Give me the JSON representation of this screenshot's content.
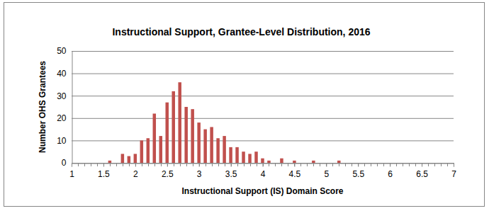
{
  "chart_data": {
    "type": "bar",
    "title": "Instructional Support, Grantee-Level Distribution, 2016",
    "x_label": "Instructional Support (IS) Domain Score",
    "y_label": "Number OHS Grantees",
    "x": [
      1,
      1.1,
      1.2,
      1.3,
      1.4,
      1.5,
      1.6,
      1.7,
      1.8,
      1.9,
      2,
      2.1,
      2.2,
      2.3,
      2.4,
      2.5,
      2.6,
      2.7,
      2.8,
      2.9,
      3,
      3.1,
      3.2,
      3.3,
      3.4,
      3.5,
      3.6,
      3.7,
      3.8,
      3.9,
      4,
      4.1,
      4.2,
      4.3,
      4.4,
      4.5,
      4.6,
      4.7,
      4.8,
      4.9,
      5,
      5.1,
      5.2,
      5.3,
      5.4,
      5.5,
      5.6,
      5.7,
      5.8,
      5.9,
      6,
      6.1,
      6.2,
      6.3,
      6.4,
      6.5,
      6.6,
      6.7,
      6.8,
      6.9,
      7
    ],
    "values": [
      0,
      0,
      0,
      0,
      0,
      0,
      1,
      0,
      4,
      3,
      4,
      10,
      11,
      22,
      12,
      27,
      32,
      36,
      25,
      24,
      18,
      15,
      16,
      11,
      12,
      7,
      7,
      5,
      4,
      5,
      2,
      1,
      0,
      2,
      0,
      1,
      0,
      0,
      1,
      0,
      0,
      0,
      1,
      0,
      0,
      0,
      0,
      0,
      0,
      0,
      0,
      0,
      0,
      0,
      0,
      0,
      0,
      0,
      0,
      0,
      0
    ],
    "color": "#c0504d",
    "xlim": [
      1,
      7
    ],
    "xticks": [
      1,
      1.5,
      2,
      2.5,
      3,
      3.5,
      4,
      4.5,
      5,
      5.5,
      6,
      6.5,
      7
    ],
    "ylim": [
      0,
      50
    ],
    "yticks": [
      0,
      10,
      20,
      30,
      40,
      50
    ],
    "grid": true
  }
}
